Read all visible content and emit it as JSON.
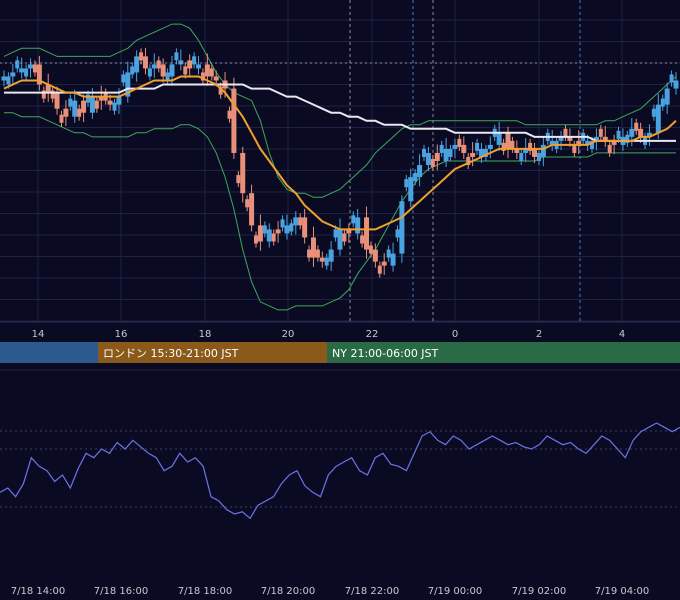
{
  "chart_data": [
    {
      "type": "candlestick",
      "overlays": [
        "bollinger-bands",
        "moving-average",
        "moving-average"
      ],
      "overlay_colors": {
        "bollinger": "#3fa85a",
        "ma_short": "#f0a030",
        "ma_long": "#e8e8f0"
      },
      "candle_colors": {
        "up": "#4aa3e0",
        "down": "#e8907a"
      },
      "grid": true,
      "x_tick_labels": [
        "14",
        "16",
        "18",
        "20",
        "22",
        "0",
        "2",
        "4"
      ],
      "price_series": [
        101,
        102,
        103,
        104,
        99,
        97,
        93,
        91,
        95,
        92,
        96,
        95,
        94,
        96,
        102,
        106,
        103,
        104,
        101,
        104,
        105,
        103,
        104,
        101,
        100,
        98,
        82,
        72,
        64,
        60,
        63,
        62,
        64,
        66,
        61,
        56,
        55,
        58,
        63,
        62,
        66,
        58,
        55,
        54,
        57,
        70,
        76,
        79,
        82,
        80,
        83,
        84,
        82,
        81,
        83,
        84,
        87,
        83,
        82,
        83,
        81,
        84,
        85,
        86,
        85,
        84,
        85,
        86,
        85,
        84,
        86,
        88,
        86,
        87,
        94,
        98,
        100
      ],
      "ma_short_series": [
        98,
        99,
        100,
        100,
        100,
        99,
        98,
        97,
        97,
        96,
        96,
        96,
        96,
        96,
        97,
        98,
        99,
        100,
        100,
        100,
        101,
        101,
        101,
        100,
        99,
        97,
        94,
        91,
        87,
        83,
        80,
        77,
        74,
        72,
        69,
        67,
        65,
        64,
        63,
        63,
        63,
        63,
        63,
        64,
        65,
        66,
        68,
        70,
        72,
        74,
        76,
        78,
        79,
        80,
        81,
        82,
        83,
        83,
        83,
        83,
        83,
        83,
        84,
        84,
        84,
        84,
        84,
        85,
        85,
        85,
        85,
        85,
        86,
        86,
        87,
        88,
        90
      ],
      "ma_long_series": [
        97,
        97,
        97,
        97,
        97,
        97,
        97,
        97,
        97,
        97,
        97,
        97,
        97,
        97,
        98,
        98,
        98,
        98,
        99,
        99,
        99,
        99,
        99,
        99,
        99,
        99,
        99,
        99,
        98,
        98,
        98,
        97,
        96,
        96,
        95,
        94,
        93,
        92,
        92,
        91,
        91,
        90,
        90,
        89,
        89,
        89,
        88,
        88,
        88,
        88,
        88,
        87,
        87,
        87,
        87,
        87,
        87,
        87,
        87,
        87,
        86,
        86,
        86,
        86,
        86,
        86,
        86,
        85,
        85,
        85,
        85,
        85,
        85,
        85,
        85,
        85,
        85
      ],
      "bb_upper_series": [
        106,
        107,
        108,
        108,
        108,
        107,
        106,
        106,
        106,
        106,
        106,
        106,
        106,
        107,
        108,
        110,
        111,
        112,
        113,
        114,
        114,
        113,
        110,
        106,
        102,
        99,
        97,
        96,
        95,
        90,
        82,
        76,
        73,
        72,
        72,
        71,
        71,
        72,
        73,
        75,
        77,
        79,
        82,
        84,
        86,
        88,
        89,
        89,
        90,
        90,
        90,
        90,
        90,
        90,
        90,
        90,
        90,
        90,
        90,
        89,
        89,
        89,
        89,
        89,
        89,
        89,
        89,
        89,
        90,
        90,
        91,
        92,
        93,
        95,
        97,
        99,
        101
      ],
      "bb_lower_series": [
        92,
        92,
        91,
        91,
        91,
        90,
        89,
        88,
        87,
        87,
        86,
        86,
        86,
        86,
        86,
        87,
        87,
        88,
        88,
        88,
        89,
        89,
        88,
        86,
        82,
        76,
        68,
        58,
        50,
        45,
        44,
        43,
        43,
        44,
        44,
        44,
        44,
        45,
        46,
        48,
        52,
        55,
        58,
        62,
        66,
        70,
        73,
        76,
        78,
        79,
        80,
        80,
        80,
        80,
        80,
        80,
        80,
        80,
        80,
        80,
        80,
        81,
        81,
        81,
        81,
        81,
        81,
        82,
        82,
        82,
        82,
        82,
        82,
        82,
        82,
        82,
        82
      ],
      "sessions": [
        {
          "label": "",
          "color": "#2d5a8e"
        },
        {
          "label": "ロンドン 15:30-21:00 JST",
          "color": "#8b5a1a"
        },
        {
          "label": "NY 21:00-06:00 JST",
          "color": "#2a6a45"
        }
      ]
    },
    {
      "type": "line",
      "series_color": "#6b74e8",
      "grid": true,
      "x_tick_labels": [
        "7/18 14:00",
        "7/18 16:00",
        "7/18 18:00",
        "7/18 20:00",
        "7/18 22:00",
        "7/19 00:00",
        "7/19 02:00",
        "7/19 04:00"
      ],
      "values": [
        62,
        64,
        60,
        66,
        78,
        74,
        72,
        67,
        70,
        64,
        73,
        80,
        78,
        82,
        80,
        85,
        82,
        86,
        83,
        80,
        78,
        72,
        74,
        80,
        76,
        78,
        74,
        60,
        58,
        54,
        52,
        53,
        50,
        56,
        58,
        60,
        66,
        70,
        72,
        65,
        62,
        60,
        70,
        74,
        76,
        78,
        72,
        70,
        78,
        80,
        75,
        74,
        72,
        80,
        88,
        90,
        86,
        84,
        88,
        86,
        82,
        84,
        86,
        88,
        86,
        84,
        85,
        83,
        82,
        84,
        88,
        86,
        84,
        85,
        82,
        80,
        84,
        88,
        86,
        82,
        78,
        86,
        90,
        92,
        94,
        92,
        90,
        92
      ]
    }
  ]
}
